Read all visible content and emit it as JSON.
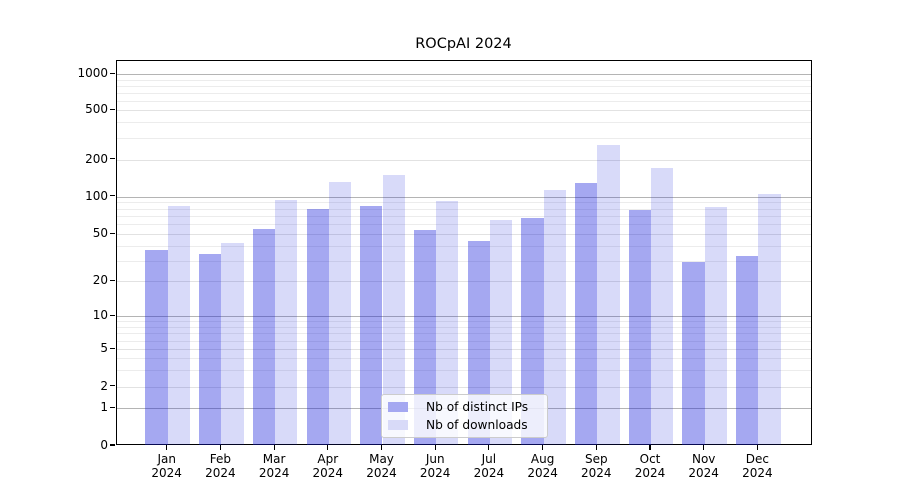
{
  "title": "ROCpAI 2024",
  "chart_data": {
    "type": "bar",
    "title": "ROCpAI 2024",
    "xlabel": "",
    "ylabel": "",
    "categories": [
      "Jan 2024",
      "Feb 2024",
      "Mar 2024",
      "Apr 2024",
      "May 2024",
      "Jun 2024",
      "Jul 2024",
      "Aug 2024",
      "Sep 2024",
      "Oct 2024",
      "Nov 2024",
      "Dec 2024"
    ],
    "series": [
      {
        "key": "distinct-ips",
        "name": "Nb of distinct IPs",
        "legend_color": "#a5a8f1",
        "fill_rgba": "rgba(18,26,218,0.38)",
        "values": [
          37,
          34,
          55,
          80,
          85,
          54,
          44,
          68,
          130,
          78,
          29,
          33
        ]
      },
      {
        "key": "downloads",
        "name": "Nb of downloads",
        "legend_color": "#d8daf8",
        "fill_rgba": "rgba(15,25,215,0.16)",
        "values": [
          85,
          42,
          94,
          133,
          150,
          92,
          65,
          113,
          264,
          170,
          83,
          105
        ]
      }
    ],
    "yscale": "symlog",
    "yticks": [
      0,
      1,
      2,
      5,
      10,
      20,
      50,
      100,
      200,
      500,
      1000
    ],
    "ylim": [
      0,
      1300
    ],
    "grid": true,
    "legend_position": "lower center"
  },
  "colors": {
    "bar_distinct_ips": "#a5a8f1",
    "bar_downloads": "#d8daf8",
    "grid_major": "#b4b4b4",
    "grid_mid": "#e2e2e2",
    "grid_minor": "#ececec",
    "axis": "#000000",
    "background": "#ffffff"
  }
}
